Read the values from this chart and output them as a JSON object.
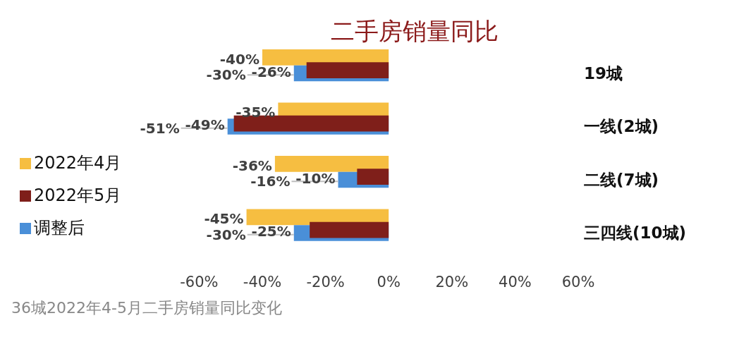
{
  "chart_data": {
    "type": "bar",
    "orientation": "horizontal",
    "title": "二手房销量同比",
    "categories": [
      "19城",
      "一线(2城)",
      "二线(7城)",
      "三四线(10城)"
    ],
    "series": [
      {
        "name": "2022年4月",
        "color": "#f6be41",
        "values": [
          -40,
          -35,
          -36,
          -45
        ],
        "value_labels": [
          "-40%",
          "-35%",
          "-36%",
          "-45%"
        ]
      },
      {
        "name": "调整后",
        "color": "#4a8fd8",
        "values": [
          -30,
          -51,
          -16,
          -30
        ],
        "value_labels": [
          "-30%",
          "-51%",
          "-16%",
          "-30%"
        ]
      },
      {
        "name": "2022年5月",
        "color": "#7f1f1a",
        "values": [
          -26,
          -49,
          -10,
          -25
        ],
        "value_labels": [
          "-26%",
          "-49%",
          "-10%",
          "-25%"
        ]
      }
    ],
    "xlim": [
      -60,
      60
    ],
    "xticks": [
      {
        "value": -60,
        "label": "-60%"
      },
      {
        "value": -40,
        "label": "-40%"
      },
      {
        "value": -20,
        "label": "-20%"
      },
      {
        "value": 0,
        "label": "0%"
      },
      {
        "value": 20,
        "label": "20%"
      },
      {
        "value": 40,
        "label": "40%"
      },
      {
        "value": 60,
        "label": "60%"
      }
    ],
    "grid": false,
    "legend": "left",
    "annotations": [
      "36城2022年4-5月二手房销量同比变化"
    ]
  }
}
